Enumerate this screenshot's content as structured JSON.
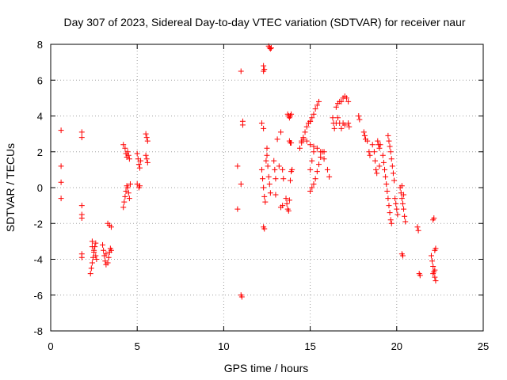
{
  "chart_data": {
    "type": "scatter",
    "title": "Day 307 of 2023, Sidereal Day-to-day VTEC variation (SDTVAR) for receiver naur",
    "xlabel": "GPS time / hours",
    "ylabel": "SDTVAR / TECUs",
    "xlim": [
      0,
      25
    ],
    "ylim": [
      -8,
      8
    ],
    "xticks": [
      0,
      5,
      10,
      15,
      20,
      25
    ],
    "yticks": [
      -8,
      -6,
      -4,
      -2,
      0,
      2,
      4,
      6,
      8
    ],
    "grid": true,
    "marker": "+",
    "color": "#ff0000",
    "series": [
      {
        "name": "SDTVAR",
        "points": [
          [
            0.6,
            3.2
          ],
          [
            0.6,
            1.2
          ],
          [
            0.6,
            0.3
          ],
          [
            0.6,
            -0.6
          ],
          [
            1.8,
            3.1
          ],
          [
            1.8,
            2.8
          ],
          [
            1.8,
            -1.0
          ],
          [
            1.8,
            -1.5
          ],
          [
            1.8,
            -1.7
          ],
          [
            1.8,
            -3.7
          ],
          [
            1.8,
            -3.9
          ],
          [
            2.3,
            -4.8
          ],
          [
            2.35,
            -4.5
          ],
          [
            2.4,
            -4.2
          ],
          [
            2.45,
            -3.9
          ],
          [
            2.5,
            -3.6
          ],
          [
            2.55,
            -3.3
          ],
          [
            2.6,
            -3.1
          ],
          [
            2.4,
            -3.0
          ],
          [
            2.5,
            -3.5
          ],
          [
            2.6,
            -3.8
          ],
          [
            2.65,
            -4.0
          ],
          [
            2.4,
            -3.3
          ],
          [
            3.0,
            -3.2
          ],
          [
            3.05,
            -3.5
          ],
          [
            3.1,
            -3.8
          ],
          [
            3.15,
            -4.1
          ],
          [
            3.2,
            -4.3
          ],
          [
            3.3,
            -4.2
          ],
          [
            3.35,
            -3.9
          ],
          [
            3.4,
            -3.6
          ],
          [
            3.45,
            -3.4
          ],
          [
            3.5,
            -3.5
          ],
          [
            3.2,
            -3.7
          ],
          [
            3.3,
            -2.0
          ],
          [
            3.4,
            -2.1
          ],
          [
            3.5,
            -2.2
          ],
          [
            4.2,
            -1.1
          ],
          [
            4.25,
            -0.8
          ],
          [
            4.3,
            -0.5
          ],
          [
            4.35,
            -0.2
          ],
          [
            4.4,
            0.1
          ],
          [
            4.45,
            0.0
          ],
          [
            4.5,
            -0.3
          ],
          [
            4.55,
            -0.6
          ],
          [
            4.6,
            0.2
          ],
          [
            4.2,
            2.4
          ],
          [
            4.3,
            2.2
          ],
          [
            4.35,
            1.9
          ],
          [
            4.4,
            1.7
          ],
          [
            4.45,
            2.0
          ],
          [
            4.5,
            1.8
          ],
          [
            4.55,
            1.6
          ],
          [
            5.0,
            1.9
          ],
          [
            5.05,
            1.6
          ],
          [
            5.1,
            1.3
          ],
          [
            5.15,
            1.1
          ],
          [
            5.2,
            1.5
          ],
          [
            5.0,
            0.2
          ],
          [
            5.1,
            0.0
          ],
          [
            5.15,
            0.1
          ],
          [
            5.5,
            3.0
          ],
          [
            5.55,
            2.8
          ],
          [
            5.6,
            2.6
          ],
          [
            5.5,
            1.8
          ],
          [
            5.55,
            1.6
          ],
          [
            5.6,
            1.4
          ],
          [
            10.8,
            1.2
          ],
          [
            10.8,
            -1.2
          ],
          [
            11.0,
            6.5
          ],
          [
            11.1,
            3.7
          ],
          [
            11.1,
            3.5
          ],
          [
            11.0,
            0.2
          ],
          [
            11.0,
            -6.0
          ],
          [
            11.05,
            -6.1
          ],
          [
            12.3,
            6.8
          ],
          [
            12.35,
            6.6
          ],
          [
            12.3,
            6.5
          ],
          [
            12.2,
            3.6
          ],
          [
            12.3,
            3.3
          ],
          [
            12.3,
            -2.2
          ],
          [
            12.35,
            -2.3
          ],
          [
            12.2,
            1.0
          ],
          [
            12.25,
            0.5
          ],
          [
            12.3,
            0.0
          ],
          [
            12.35,
            -0.5
          ],
          [
            12.4,
            -0.8
          ],
          [
            12.5,
            1.8
          ],
          [
            12.55,
            1.2
          ],
          [
            12.6,
            0.6
          ],
          [
            12.65,
            0.2
          ],
          [
            12.7,
            -0.3
          ],
          [
            12.5,
            2.2
          ],
          [
            12.45,
            1.5
          ],
          [
            12.6,
            7.9
          ],
          [
            12.65,
            7.8
          ],
          [
            12.7,
            7.75
          ],
          [
            12.75,
            7.8
          ],
          [
            12.9,
            1.5
          ],
          [
            12.95,
            1.0
          ],
          [
            13.0,
            0.5
          ],
          [
            13.0,
            -0.4
          ],
          [
            13.1,
            2.7
          ],
          [
            13.2,
            1.2
          ],
          [
            13.3,
            3.1
          ],
          [
            13.3,
            -1.1
          ],
          [
            13.4,
            -1.0
          ],
          [
            13.4,
            1.0
          ],
          [
            13.45,
            0.5
          ],
          [
            13.6,
            -0.6
          ],
          [
            13.65,
            -0.9
          ],
          [
            13.7,
            -1.2
          ],
          [
            13.75,
            -1.3
          ],
          [
            13.8,
            -0.7
          ],
          [
            13.85,
            0.4
          ],
          [
            13.9,
            0.9
          ],
          [
            13.95,
            1.0
          ],
          [
            13.7,
            4.1
          ],
          [
            13.75,
            4.0
          ],
          [
            13.8,
            3.9
          ],
          [
            13.85,
            4.0
          ],
          [
            13.9,
            4.1
          ],
          [
            13.8,
            2.6
          ],
          [
            13.85,
            2.5
          ],
          [
            13.9,
            2.5
          ],
          [
            14.4,
            2.2
          ],
          [
            14.5,
            2.5
          ],
          [
            14.6,
            2.8
          ],
          [
            14.7,
            3.1
          ],
          [
            14.8,
            3.4
          ],
          [
            14.9,
            3.6
          ],
          [
            15.0,
            3.7
          ],
          [
            14.5,
            2.6
          ],
          [
            14.6,
            2.7
          ],
          [
            14.8,
            2.6
          ],
          [
            15.0,
            2.4
          ],
          [
            15.2,
            2.3
          ],
          [
            15.4,
            2.2
          ],
          [
            15.6,
            2.0
          ],
          [
            15.8,
            1.6
          ],
          [
            16.0,
            1.0
          ],
          [
            16.1,
            0.6
          ],
          [
            15.0,
            1.0
          ],
          [
            15.1,
            1.5
          ],
          [
            15.2,
            2.0
          ],
          [
            15.0,
            -0.2
          ],
          [
            15.1,
            0.0
          ],
          [
            15.2,
            0.2
          ],
          [
            15.3,
            0.5
          ],
          [
            15.4,
            0.9
          ],
          [
            15.5,
            1.3
          ],
          [
            15.6,
            1.7
          ],
          [
            15.7,
            2.0
          ],
          [
            15.8,
            2.0
          ],
          [
            15.0,
            3.7
          ],
          [
            15.1,
            3.9
          ],
          [
            15.2,
            4.1
          ],
          [
            15.3,
            4.4
          ],
          [
            15.4,
            4.6
          ],
          [
            15.5,
            4.8
          ],
          [
            16.3,
            3.9
          ],
          [
            16.35,
            3.6
          ],
          [
            16.4,
            3.3
          ],
          [
            16.5,
            3.6
          ],
          [
            16.6,
            3.9
          ],
          [
            16.7,
            3.6
          ],
          [
            16.8,
            3.3
          ],
          [
            16.9,
            3.6
          ],
          [
            17.0,
            3.5
          ],
          [
            16.5,
            4.5
          ],
          [
            16.6,
            4.7
          ],
          [
            16.7,
            4.8
          ],
          [
            16.8,
            4.8
          ],
          [
            16.9,
            5.0
          ],
          [
            17.0,
            5.1
          ],
          [
            17.1,
            5.0
          ],
          [
            17.2,
            4.8
          ],
          [
            17.2,
            3.6
          ],
          [
            17.25,
            3.4
          ],
          [
            17.8,
            4.0
          ],
          [
            17.85,
            3.8
          ],
          [
            18.1,
            3.1
          ],
          [
            18.15,
            2.9
          ],
          [
            18.2,
            2.7
          ],
          [
            18.3,
            2.6
          ],
          [
            18.4,
            2.0
          ],
          [
            18.45,
            1.8
          ],
          [
            18.6,
            2.4
          ],
          [
            18.7,
            2.0
          ],
          [
            18.75,
            1.5
          ],
          [
            18.8,
            1.0
          ],
          [
            18.85,
            0.8
          ],
          [
            18.9,
            2.6
          ],
          [
            18.95,
            2.4
          ],
          [
            19.0,
            2.2
          ],
          [
            19.05,
            2.4
          ],
          [
            19.0,
            1.2
          ],
          [
            19.2,
            1.8
          ],
          [
            19.25,
            1.4
          ],
          [
            19.3,
            1.0
          ],
          [
            19.35,
            0.6
          ],
          [
            19.4,
            0.2
          ],
          [
            19.45,
            -0.2
          ],
          [
            19.5,
            -0.6
          ],
          [
            19.55,
            -1.0
          ],
          [
            19.6,
            -1.4
          ],
          [
            19.65,
            -1.8
          ],
          [
            19.7,
            -2.0
          ],
          [
            19.5,
            2.9
          ],
          [
            19.55,
            2.6
          ],
          [
            19.6,
            2.3
          ],
          [
            19.65,
            2.0
          ],
          [
            19.7,
            1.6
          ],
          [
            19.75,
            1.2
          ],
          [
            19.8,
            0.8
          ],
          [
            19.85,
            0.4
          ],
          [
            19.9,
            -0.6
          ],
          [
            19.95,
            -0.9
          ],
          [
            20.0,
            -1.2
          ],
          [
            20.05,
            -1.5
          ],
          [
            20.2,
            0.0
          ],
          [
            20.25,
            -0.3
          ],
          [
            20.3,
            -0.6
          ],
          [
            20.35,
            -0.9
          ],
          [
            20.4,
            -1.2
          ],
          [
            20.45,
            -1.6
          ],
          [
            20.5,
            -1.9
          ],
          [
            20.3,
            0.1
          ],
          [
            20.4,
            -0.4
          ],
          [
            20.3,
            -3.7
          ],
          [
            20.35,
            -3.8
          ],
          [
            21.2,
            -2.2
          ],
          [
            21.25,
            -2.4
          ],
          [
            21.3,
            -4.8
          ],
          [
            21.35,
            -4.9
          ],
          [
            22.0,
            -3.8
          ],
          [
            22.05,
            -4.1
          ],
          [
            22.1,
            -4.4
          ],
          [
            22.15,
            -4.7
          ],
          [
            22.2,
            -5.0
          ],
          [
            22.25,
            -5.2
          ],
          [
            22.1,
            -4.8
          ],
          [
            22.2,
            -4.6
          ],
          [
            22.1,
            -1.8
          ],
          [
            22.15,
            -1.7
          ],
          [
            22.2,
            -3.5
          ],
          [
            22.25,
            -3.4
          ]
        ]
      }
    ]
  }
}
